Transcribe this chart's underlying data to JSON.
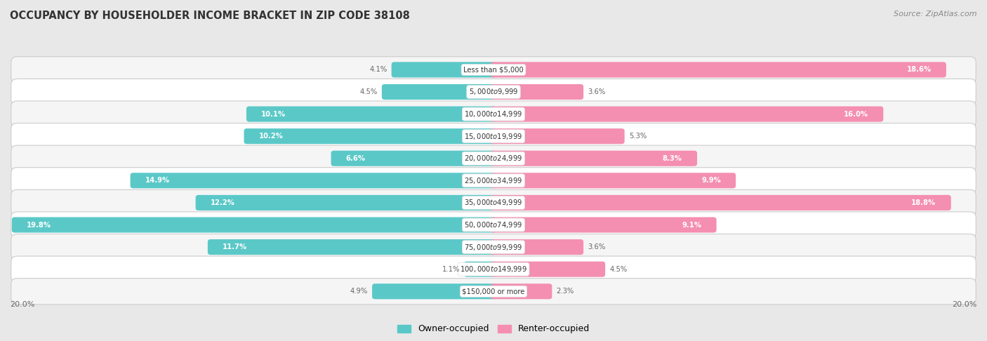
{
  "title": "OCCUPANCY BY HOUSEHOLDER INCOME BRACKET IN ZIP CODE 38108",
  "source": "Source: ZipAtlas.com",
  "categories": [
    "Less than $5,000",
    "$5,000 to $9,999",
    "$10,000 to $14,999",
    "$15,000 to $19,999",
    "$20,000 to $24,999",
    "$25,000 to $34,999",
    "$35,000 to $49,999",
    "$50,000 to $74,999",
    "$75,000 to $99,999",
    "$100,000 to $149,999",
    "$150,000 or more"
  ],
  "owner_values": [
    4.1,
    4.5,
    10.1,
    10.2,
    6.6,
    14.9,
    12.2,
    19.8,
    11.7,
    1.1,
    4.9
  ],
  "renter_values": [
    18.6,
    3.6,
    16.0,
    5.3,
    8.3,
    9.9,
    18.8,
    9.1,
    3.6,
    4.5,
    2.3
  ],
  "owner_color": "#5bc8c8",
  "renter_color": "#f48fb1",
  "axis_max": 20.0,
  "background_color": "#e8e8e8",
  "row_color_odd": "#f5f5f5",
  "row_color_even": "#ffffff",
  "legend_owner": "Owner-occupied",
  "legend_renter": "Renter-occupied"
}
